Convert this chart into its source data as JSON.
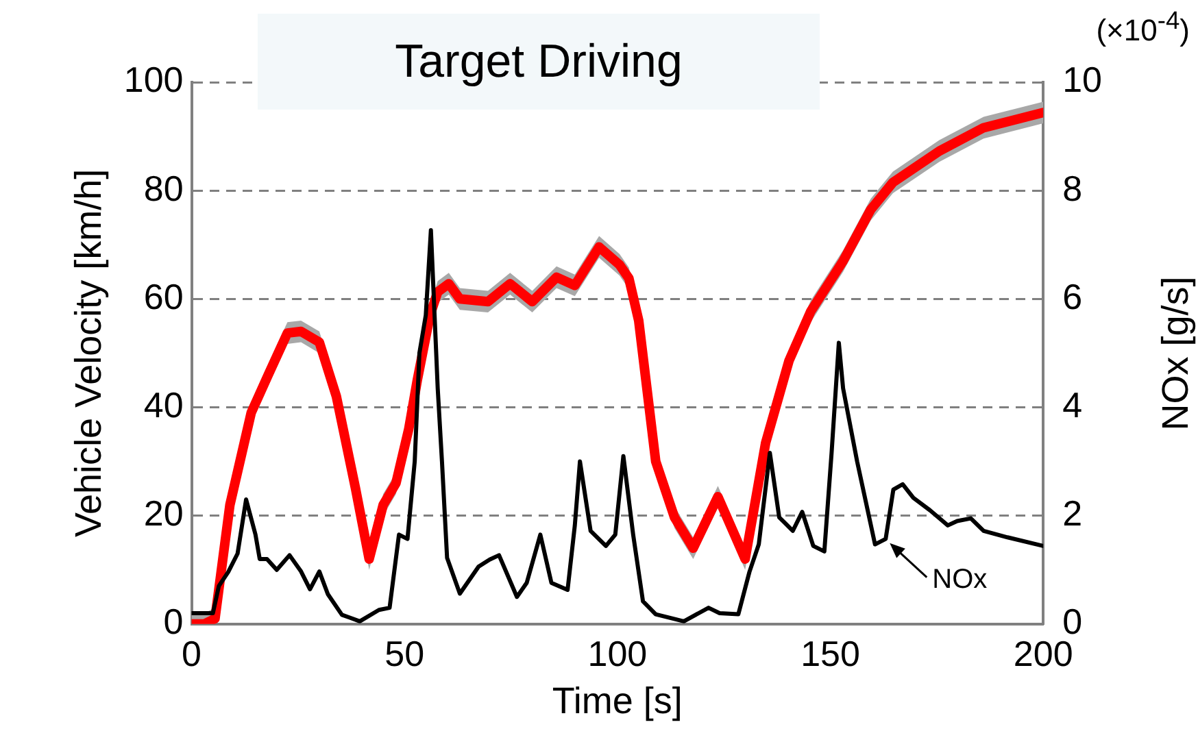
{
  "chart_data": {
    "type": "line",
    "title": "Target Driving",
    "xlabel": "Time [s]",
    "ylabel": "Vehicle Velocity [km/h]",
    "y2label": "NOx [g/s]",
    "annotations": [
      "(×10$^{-4}$)",
      {
        "text": "NOx",
        "x": 163,
        "y": 15.7
      }
    ],
    "xlim": [
      0,
      200
    ],
    "xticks": [
      0,
      50,
      100,
      150,
      200
    ],
    "ylim": [
      0,
      100
    ],
    "yticks": [
      0,
      20,
      40,
      60,
      80,
      100
    ],
    "y2lim": [
      0,
      10
    ],
    "y2ticks": [
      0,
      2,
      4,
      6,
      8,
      10
    ],
    "grid": "y",
    "legend": false,
    "marker": "none",
    "line_style": "solid",
    "series": [
      {
        "color": "#ff0000",
        "axis": "y",
        "x": [
          0,
          3,
          5.5,
          9,
          14,
          18,
          22.5,
          25.7,
          30,
          34,
          38.5,
          41.7,
          45,
          48,
          51,
          53,
          56,
          57.8,
          60.4,
          63,
          69.6,
          74.8,
          80,
          85.7,
          90,
          95.7,
          100.5,
          102.7,
          105,
          109,
          113.4,
          117.8,
          123.6,
          130,
          134.8,
          140.3,
          145.4,
          153,
          159.5,
          164.7,
          175.6,
          186,
          200
        ],
        "values": [
          0,
          0,
          1,
          22,
          39,
          46,
          53.7,
          54,
          52,
          42,
          25,
          12,
          22,
          26,
          36,
          45,
          57,
          61.3,
          62.8,
          60,
          59.5,
          62.8,
          59.5,
          64,
          62.5,
          69.6,
          66.3,
          63.8,
          56,
          30,
          19.7,
          14,
          23.5,
          12,
          33.4,
          48.6,
          57.7,
          67,
          76.5,
          81.5,
          87.3,
          91.6,
          94.4
        ],
        "lower": [
          0,
          0,
          0,
          20,
          37,
          44,
          51.7,
          52,
          50,
          40,
          23,
          10,
          20,
          24,
          34,
          43,
          55,
          59.3,
          60.8,
          58,
          57.5,
          60.8,
          57.5,
          62,
          60.5,
          67.6,
          64.3,
          61.8,
          54,
          28,
          17.7,
          12,
          21.5,
          10,
          31.4,
          46.6,
          55.7,
          65,
          74.5,
          79.5,
          85.3,
          89.6,
          92.4
        ],
        "upper": [
          2,
          2,
          3,
          24,
          41,
          48,
          55.7,
          56,
          54,
          44,
          27,
          14,
          24,
          28,
          38,
          47,
          59,
          63.3,
          64.8,
          62,
          61.5,
          64.8,
          61.5,
          66,
          64.5,
          71.6,
          68.3,
          65.8,
          58,
          32,
          21.7,
          16,
          25.5,
          14,
          35.4,
          50.6,
          59.7,
          69,
          78.5,
          83.5,
          89.3,
          93.6,
          96.4
        ]
      },
      {
        "color": "#000000",
        "axis": "y2",
        "x": [
          0,
          5,
          6.4,
          8.6,
          10.8,
          12.8,
          15,
          16,
          17.7,
          20,
          23,
          25.7,
          27.8,
          30,
          32,
          35.3,
          39.5,
          44,
          46.5,
          48.7,
          50.7,
          52.4,
          53.5,
          55,
          56.2,
          57.8,
          58.8,
          60,
          63,
          67.4,
          70,
          72.2,
          76.4,
          78.7,
          81.9,
          84.5,
          88.3,
          90,
          91.2,
          93.7,
          97.3,
          99.5,
          101.4,
          103.7,
          106,
          109,
          115.6,
          121.4,
          124,
          128.4,
          131,
          133.2,
          135.8,
          138,
          141.2,
          143.4,
          146,
          148.6,
          150.3,
          152,
          153,
          156.3,
          160.5,
          163,
          164.8,
          167,
          169.5,
          173.4,
          177.6,
          179.8,
          183,
          186,
          191.6,
          200
        ],
        "values": [
          0.2,
          0.2,
          0.7,
          0.96,
          1.3,
          2.3,
          1.65,
          1.2,
          1.2,
          1.0,
          1.27,
          0.97,
          0.64,
          0.97,
          0.55,
          0.17,
          0.05,
          0.26,
          0.3,
          1.65,
          1.57,
          3.0,
          5.0,
          5.7,
          7.27,
          4.35,
          3.0,
          1.22,
          0.56,
          1.06,
          1.19,
          1.27,
          0.5,
          0.76,
          1.65,
          0.76,
          0.63,
          1.82,
          3.0,
          1.72,
          1.44,
          1.65,
          3.1,
          1.65,
          0.42,
          0.18,
          0.05,
          0.3,
          0.2,
          0.18,
          0.96,
          1.47,
          3.16,
          1.97,
          1.72,
          2.07,
          1.44,
          1.34,
          3.16,
          5.19,
          4.35,
          3.0,
          1.47,
          1.57,
          2.48,
          2.58,
          2.33,
          2.1,
          1.82,
          1.9,
          1.95,
          1.72,
          1.6,
          1.44
        ]
      }
    ]
  }
}
